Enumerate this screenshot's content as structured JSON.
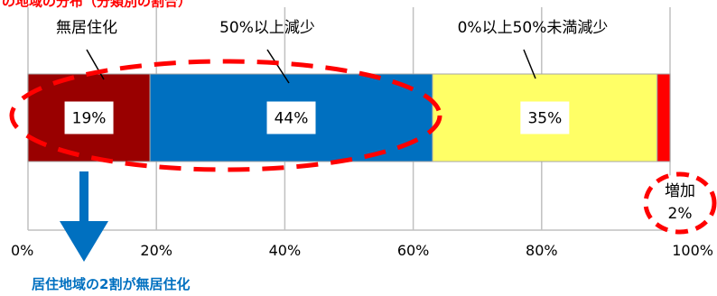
{
  "chart_data": {
    "type": "bar",
    "orientation": "horizontal",
    "stacked": true,
    "title": "の地域の分布（分類別の割合）",
    "xlim": [
      0,
      100
    ],
    "x_tick_labels": [
      "0%",
      "20%",
      "40%",
      "60%",
      "80%",
      "100%"
    ],
    "grid": true,
    "series": [
      {
        "name": "無居住化",
        "value": 19,
        "value_label": "19%",
        "color": "#990000"
      },
      {
        "name": "50%以上減少",
        "value": 44,
        "value_label": "44%",
        "color": "#0070c0"
      },
      {
        "name": "0%以上50%未満減少",
        "value": 35,
        "value_label": "35%",
        "color": "#ffff66"
      },
      {
        "name": "増加",
        "value": 2,
        "value_label": "2%",
        "color": "#ff0000"
      }
    ],
    "conclusion": "居住地域の2割が無居住化"
  },
  "colors": {
    "highlight_red": "#ff0000",
    "arrow_blue": "#0070c0",
    "grid": "#c0c0c0",
    "text": "#000000"
  }
}
